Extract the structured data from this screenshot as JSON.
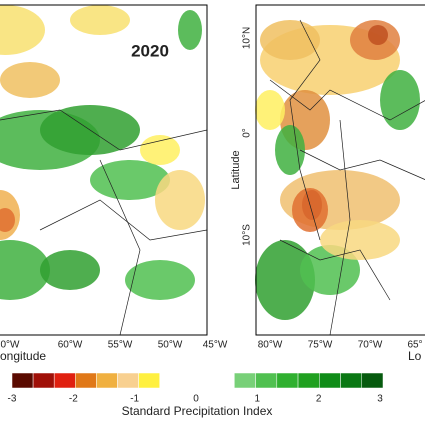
{
  "panels": [
    {
      "label": "2020",
      "x_ticks": [
        "0°W",
        "60°W",
        "55°W",
        "50°W",
        "45°W"
      ],
      "x_axis_label": "ongitude"
    },
    {
      "y_axis_label": "Latitude",
      "y_ticks": [
        "10°N",
        "0°",
        "10°S"
      ],
      "x_ticks": [
        "80°W",
        "75°W",
        "70°W",
        "65°"
      ],
      "x_axis_label": "Lo"
    }
  ],
  "colorbar": {
    "title": "Standard Precipitation Index",
    "ticks": [
      -3,
      -2,
      -1,
      0,
      1,
      2,
      3
    ],
    "negative_colors": [
      "#5a0a00",
      "#a01008",
      "#e02010",
      "#e07818",
      "#f0b040",
      "#f8d090",
      "#fff040"
    ],
    "positive_colors": [
      "#78d078",
      "#50c050",
      "#30b030",
      "#20a020",
      "#108c18",
      "#0a7814",
      "#065a0e"
    ]
  }
}
